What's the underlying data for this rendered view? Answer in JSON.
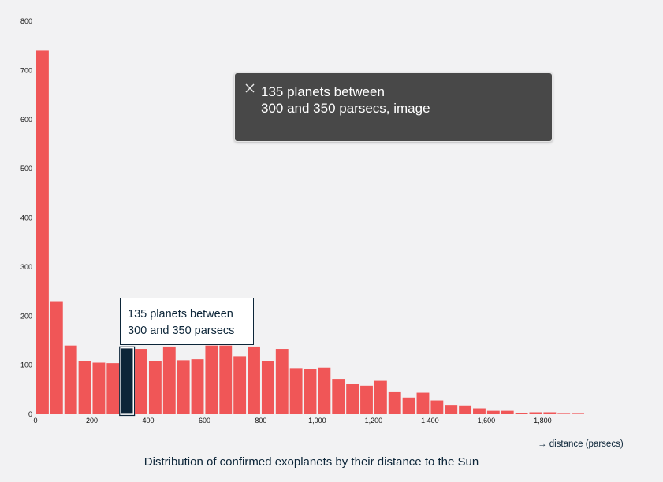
{
  "chart_data": {
    "type": "bar",
    "title": "Distribution of confirmed exoplanets by their distance to the Sun",
    "xlabel": "→ distance (parsecs)",
    "ylabel": "",
    "bin_width": 50,
    "xlim": [
      0,
      1950
    ],
    "ylim": [
      0,
      800
    ],
    "y_ticks": [
      "0",
      "100",
      "200",
      "300",
      "400",
      "500",
      "600",
      "700",
      "800"
    ],
    "x_ticks": [
      "0",
      "200",
      "400",
      "600",
      "800",
      "1,000",
      "1,200",
      "1,400",
      "1,600",
      "1,800"
    ],
    "x_tick_values": [
      0,
      200,
      400,
      600,
      800,
      1000,
      1200,
      1400,
      1600,
      1800
    ],
    "y_tick_values": [
      0,
      100,
      200,
      300,
      400,
      500,
      600,
      700,
      800
    ],
    "bin_starts": [
      0,
      50,
      100,
      150,
      200,
      250,
      300,
      350,
      400,
      450,
      500,
      550,
      600,
      650,
      700,
      750,
      800,
      850,
      900,
      950,
      1000,
      1050,
      1100,
      1150,
      1200,
      1250,
      1300,
      1350,
      1400,
      1450,
      1500,
      1550,
      1600,
      1650,
      1700,
      1750,
      1800,
      1850,
      1900
    ],
    "values": [
      740,
      230,
      140,
      108,
      105,
      104,
      135,
      133,
      108,
      138,
      110,
      112,
      140,
      140,
      118,
      138,
      108,
      133,
      94,
      92,
      95,
      72,
      61,
      58,
      68,
      45,
      34,
      44,
      28,
      19,
      18,
      12,
      7,
      7,
      3,
      4,
      4,
      1,
      1
    ],
    "highlighted_bin": 6,
    "grid": false,
    "legend": "none",
    "colors": {
      "bar": "#f05657",
      "highlight": "#0c2538"
    }
  },
  "tooltip": {
    "line1": "135 planets between",
    "line2": "300 and 350 parsecs"
  },
  "popup": {
    "close_icon": "close-icon",
    "line1": "135 planets between",
    "line2": "300 and 350 parsecs, image"
  }
}
